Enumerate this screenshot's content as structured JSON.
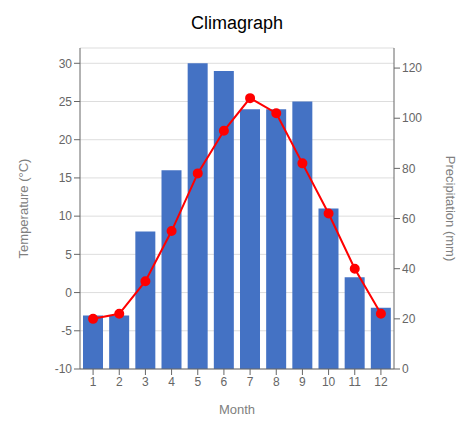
{
  "chart_data": {
    "type": "bar",
    "title": "Climagraph",
    "xlabel": "Month",
    "ylabel": "Temperature (°C)",
    "y2label": "Precipitation (mm)",
    "categories": [
      "1",
      "2",
      "3",
      "4",
      "5",
      "6",
      "7",
      "8",
      "9",
      "10",
      "11",
      "12"
    ],
    "series": [
      {
        "type": "bar",
        "color": "#4472C4",
        "values": [
          -3,
          -3,
          8,
          16,
          30,
          29,
          24,
          24,
          25,
          11,
          2,
          -2
        ]
      },
      {
        "type": "line",
        "axis": "y2",
        "color": "#FF0000",
        "marker": "circle",
        "line_style": "solid",
        "values": [
          20,
          22,
          35,
          55,
          78,
          95,
          108,
          102,
          82,
          62,
          40,
          22
        ]
      }
    ],
    "ylim": [
      -10,
      32
    ],
    "yticks": [
      -10,
      -5,
      0,
      5,
      10,
      15,
      20,
      25,
      30
    ],
    "y2lim": [
      0,
      128
    ],
    "y2ticks": [
      0,
      20,
      40,
      60,
      80,
      100,
      120
    ],
    "grid": true
  }
}
